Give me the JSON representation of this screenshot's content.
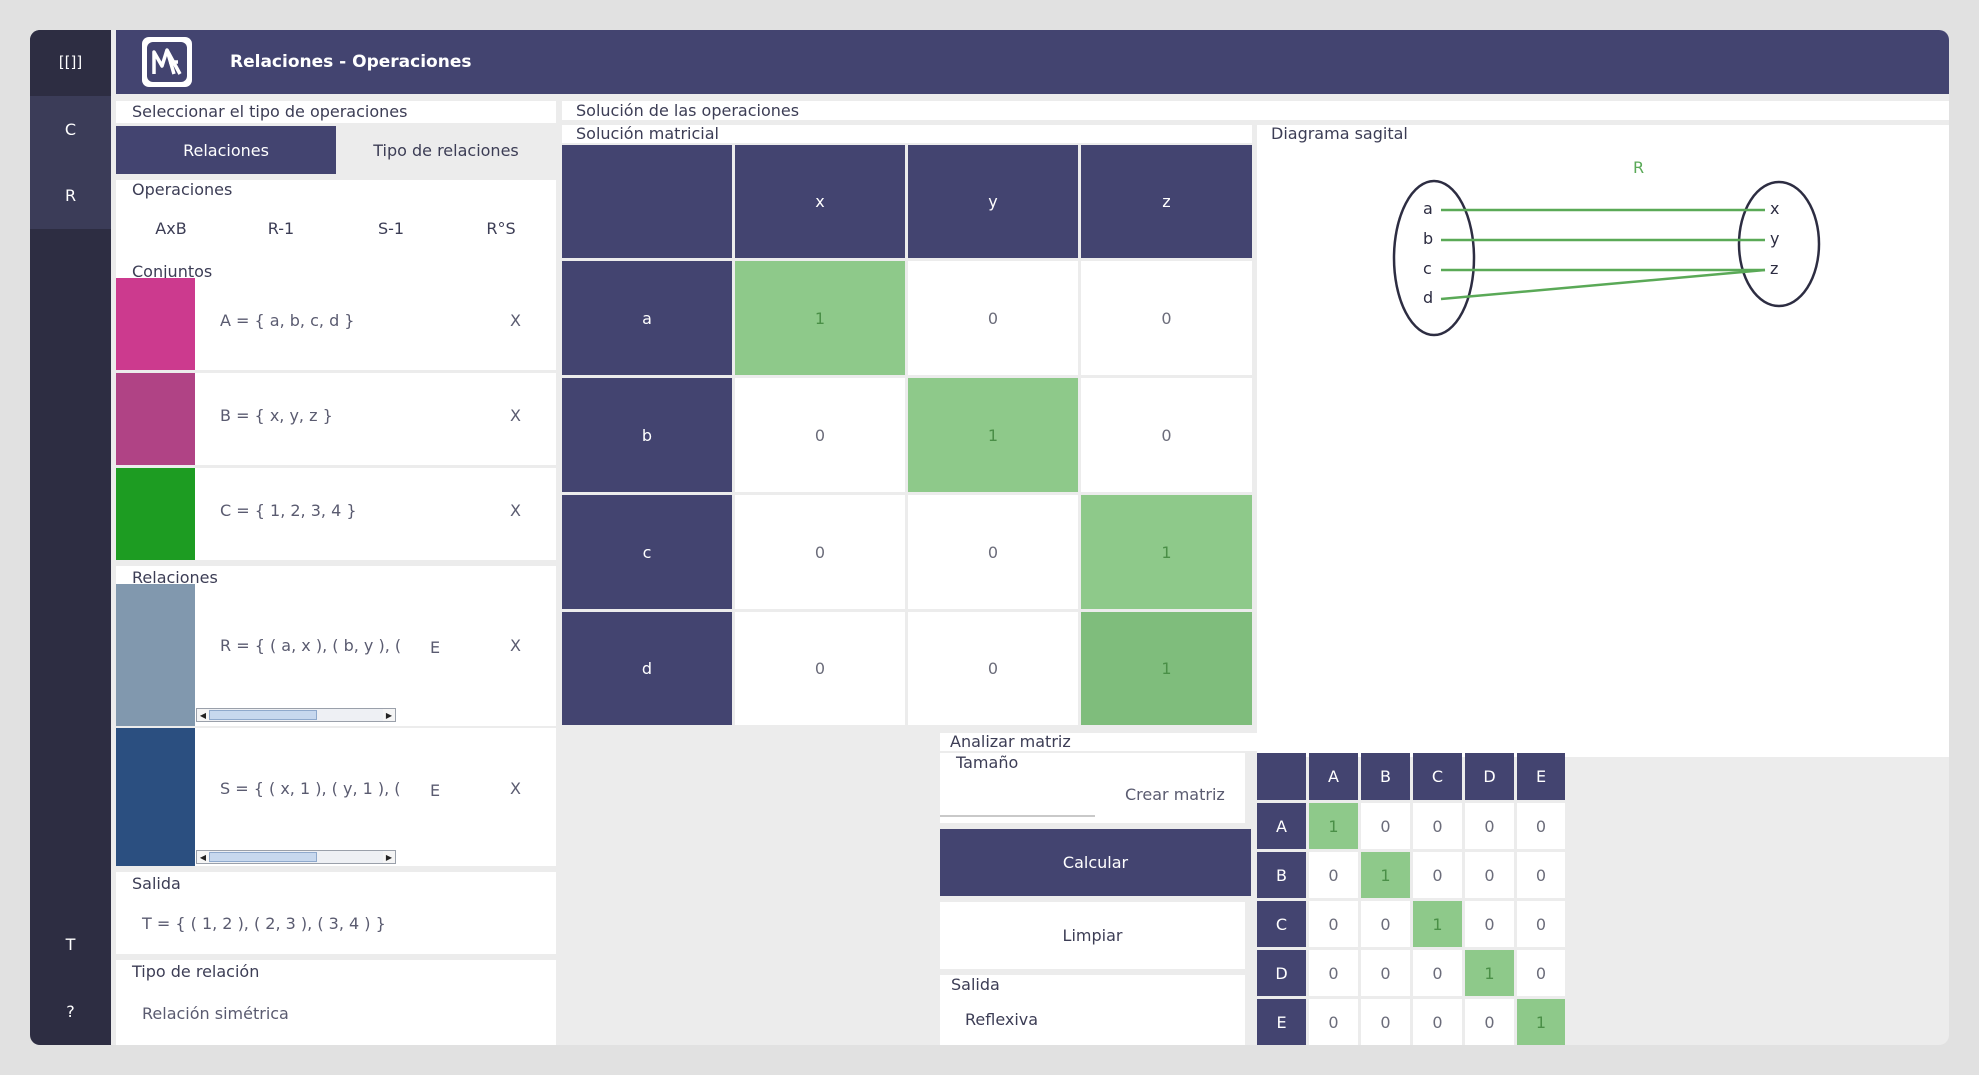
{
  "sidebar": {
    "top_label": "[[]]",
    "items": [
      {
        "label": "C"
      },
      {
        "label": "R"
      }
    ],
    "bottom_items": [
      {
        "label": "T"
      },
      {
        "label": "?"
      }
    ]
  },
  "header": {
    "title": "Relaciones - Operaciones"
  },
  "left": {
    "select_label": "Seleccionar el tipo de  operaciones",
    "tabs": [
      {
        "label": "Relaciones",
        "active": true
      },
      {
        "label": "Tipo de relaciones",
        "active": false
      }
    ],
    "operations_label": "Operaciones",
    "operations": [
      "AxB",
      "R-1",
      "S-1",
      "R°S"
    ],
    "sets_label": "Conjuntos",
    "sets": [
      {
        "text": "A = { a, b, c, d }",
        "color": "#cc3a8e",
        "remove": "X"
      },
      {
        "text": "B = { x, y, z }",
        "color": "#b04385",
        "remove": "X"
      },
      {
        "text": "C = { 1, 2, 3, 4 }",
        "color": "#1d9c22",
        "remove": "X"
      }
    ],
    "relations_label": "Relaciones",
    "relations": [
      {
        "text": "R = { ( a, x ), ( b, y ), (",
        "color": "#8198ae",
        "edit": "E",
        "remove": "X"
      },
      {
        "text": "S = { ( x, 1 ), ( y, 1 ), (",
        "color": "#2b4f80",
        "edit": "E",
        "remove": "X"
      }
    ],
    "output_label": "Salida",
    "output_value": "T = { ( 1, 2 ), ( 2, 3 ), ( 3, 4 ) }",
    "relation_type_label": "Tipo de relación",
    "relation_type_value": "Relación simétrica"
  },
  "solution": {
    "title": "Solución de las operaciones",
    "matrix_label": "Solución matricial",
    "col_headers": [
      "x",
      "y",
      "z"
    ],
    "rows": [
      {
        "label": "a",
        "values": [
          "1",
          "0",
          "0"
        ]
      },
      {
        "label": "b",
        "values": [
          "0",
          "1",
          "0"
        ]
      },
      {
        "label": "c",
        "values": [
          "0",
          "0",
          "1"
        ]
      },
      {
        "label": "d",
        "values": [
          "0",
          "0",
          "1"
        ]
      }
    ],
    "diagram_label": "Diagrama sagital",
    "diagram": {
      "relation_name": "R",
      "left_elements": [
        "a",
        "b",
        "c",
        "d"
      ],
      "right_elements": [
        "x",
        "y",
        "z"
      ],
      "arrow_color": "#5aa957",
      "pairs": [
        [
          "a",
          "x"
        ],
        [
          "b",
          "y"
        ],
        [
          "c",
          "z"
        ],
        [
          "d",
          "z"
        ]
      ]
    }
  },
  "analyze": {
    "title": "Analizar matriz",
    "size_label": "Tamaño",
    "create_button": "Crear matriz",
    "calc_button": "Calcular",
    "clear_button": "Limpiar",
    "output_label": "Salida",
    "output_value": "Reflexiva",
    "headers": [
      "A",
      "B",
      "C",
      "D",
      "E"
    ],
    "rows": [
      {
        "label": "A",
        "values": [
          "1",
          "0",
          "0",
          "0",
          "0"
        ]
      },
      {
        "label": "B",
        "values": [
          "0",
          "1",
          "0",
          "0",
          "0"
        ]
      },
      {
        "label": "C",
        "values": [
          "0",
          "0",
          "1",
          "0",
          "0"
        ]
      },
      {
        "label": "D",
        "values": [
          "0",
          "0",
          "0",
          "1",
          "0"
        ]
      },
      {
        "label": "E",
        "values": [
          "0",
          "0",
          "0",
          "0",
          "1"
        ]
      }
    ]
  }
}
